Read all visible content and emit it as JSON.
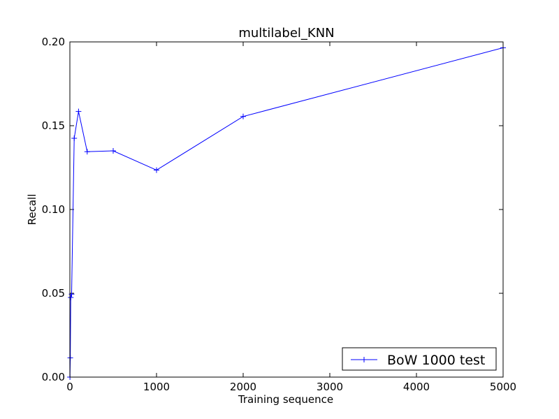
{
  "chart_data": {
    "type": "line",
    "title": "multilabel_KNN",
    "xlabel": "Training sequence",
    "ylabel": "Recall",
    "xlim": [
      0,
      5000
    ],
    "ylim": [
      0,
      0.2
    ],
    "xticks": [
      0,
      1000,
      2000,
      3000,
      4000,
      5000
    ],
    "xtick_labels": [
      "0",
      "1000",
      "2000",
      "3000",
      "4000",
      "5000"
    ],
    "yticks": [
      0,
      0.05,
      0.1,
      0.15,
      0.2
    ],
    "ytick_labels": [
      "0.00",
      "0.05",
      "0.10",
      "0.15",
      "0.20"
    ],
    "grid": false,
    "legend_position": "bottom-right",
    "series": [
      {
        "name": "BoW 1000 test",
        "color": "#0000ff",
        "marker": "plus",
        "x": [
          1,
          5,
          10,
          20,
          50,
          100,
          200,
          500,
          1000,
          2000,
          5000
        ],
        "y": [
          0.0,
          0.0115,
          0.0475,
          0.0495,
          0.1425,
          0.1585,
          0.1345,
          0.135,
          0.1235,
          0.1555,
          0.1965
        ]
      }
    ]
  }
}
